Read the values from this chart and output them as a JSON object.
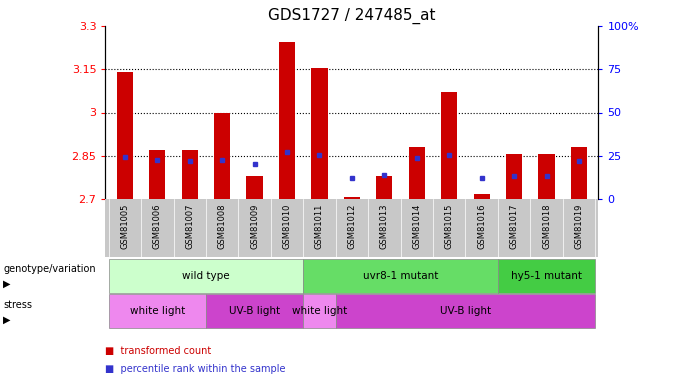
{
  "title": "GDS1727 / 247485_at",
  "samples": [
    "GSM81005",
    "GSM81006",
    "GSM81007",
    "GSM81008",
    "GSM81009",
    "GSM81010",
    "GSM81011",
    "GSM81012",
    "GSM81013",
    "GSM81014",
    "GSM81015",
    "GSM81016",
    "GSM81017",
    "GSM81018",
    "GSM81019"
  ],
  "transformed_count": [
    3.14,
    2.87,
    2.87,
    3.0,
    2.78,
    3.245,
    3.155,
    2.705,
    2.78,
    2.88,
    3.07,
    2.715,
    2.855,
    2.855,
    2.88
  ],
  "percentile_rank": [
    2.845,
    2.835,
    2.832,
    2.835,
    2.82,
    2.862,
    2.852,
    2.772,
    2.782,
    2.842,
    2.852,
    2.772,
    2.78,
    2.78,
    2.83
  ],
  "ymin": 2.7,
  "ymax": 3.3,
  "yticks_left": [
    2.7,
    2.85,
    3.0,
    3.15,
    3.3
  ],
  "yticks_right": [
    0,
    25,
    50,
    75,
    100
  ],
  "ytick_labels_left": [
    "2.7",
    "2.85",
    "3",
    "3.15",
    "3.3"
  ],
  "ytick_labels_right": [
    "0",
    "25",
    "50",
    "75",
    "100%"
  ],
  "grid_lines": [
    2.85,
    3.0,
    3.15
  ],
  "bar_color": "#cc0000",
  "dot_color": "#3333cc",
  "base": 2.7,
  "genotype_groups": [
    {
      "label": "wild type",
      "start": 0,
      "end": 6,
      "color": "#ccffcc"
    },
    {
      "label": "uvr8-1 mutant",
      "start": 6,
      "end": 12,
      "color": "#66dd66"
    },
    {
      "label": "hy5-1 mutant",
      "start": 12,
      "end": 15,
      "color": "#44cc44"
    }
  ],
  "stress_groups": [
    {
      "label": "white light",
      "start": 0,
      "end": 3,
      "color": "#ee88ee"
    },
    {
      "label": "UV-B light",
      "start": 3,
      "end": 6,
      "color": "#cc44cc"
    },
    {
      "label": "white light",
      "start": 6,
      "end": 7,
      "color": "#ee88ee"
    },
    {
      "label": "UV-B light",
      "start": 7,
      "end": 15,
      "color": "#cc44cc"
    }
  ],
  "legend_items": [
    {
      "label": "transformed count",
      "color": "#cc0000"
    },
    {
      "label": "percentile rank within the sample",
      "color": "#3333cc"
    }
  ],
  "xtick_bg": "#c8c8c8"
}
